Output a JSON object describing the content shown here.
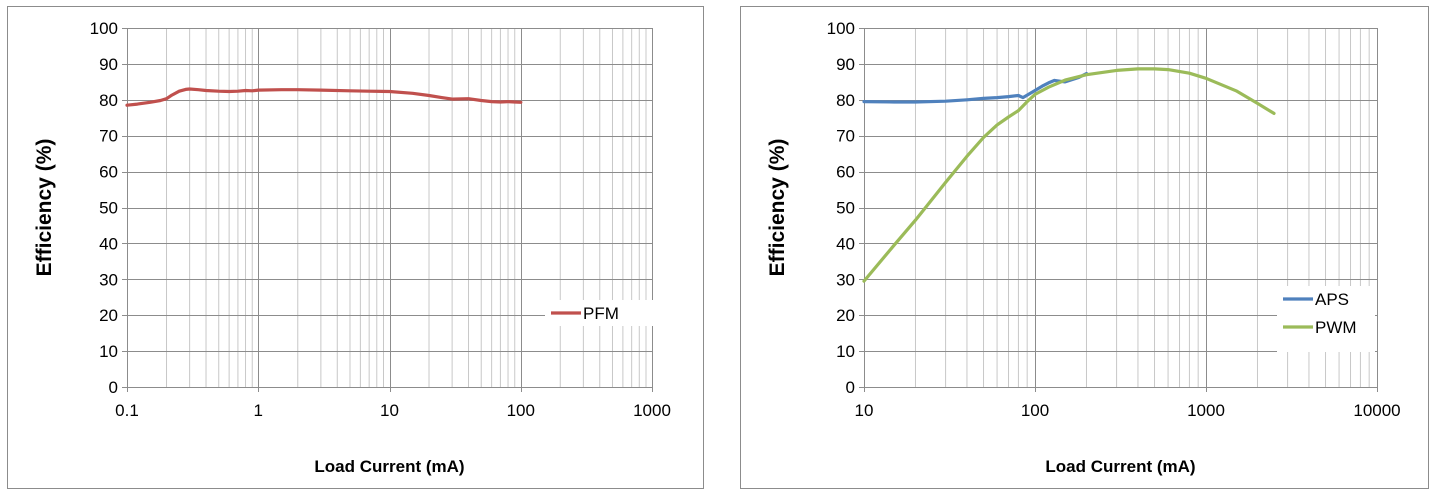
{
  "chart_data": [
    {
      "type": "line",
      "xscale": "log",
      "xlim": [
        0.1,
        1000
      ],
      "ylim": [
        0,
        100
      ],
      "xticks": [
        "0.1",
        "1",
        "10",
        "100",
        "1000"
      ],
      "yticks": [
        "0",
        "10",
        "20",
        "30",
        "40",
        "50",
        "60",
        "70",
        "80",
        "90",
        "100"
      ],
      "xlabel": "Load Current (mA)",
      "ylabel": "Efficiency (%)",
      "grid": true,
      "legend_position": "right",
      "series": [
        {
          "name": "PFM",
          "color": "#c0504d",
          "x": [
            0.1,
            0.12,
            0.15,
            0.18,
            0.2,
            0.22,
            0.25,
            0.28,
            0.3,
            0.35,
            0.4,
            0.5,
            0.6,
            0.7,
            0.8,
            0.9,
            1,
            1.5,
            2,
            3,
            5,
            7,
            10,
            15,
            20,
            25,
            30,
            40,
            50,
            60,
            70,
            80,
            90,
            100
          ],
          "y": [
            78.5,
            78.8,
            79.3,
            79.8,
            80.3,
            81.3,
            82.4,
            82.9,
            83.0,
            82.8,
            82.6,
            82.4,
            82.3,
            82.4,
            82.6,
            82.5,
            82.7,
            82.8,
            82.8,
            82.7,
            82.5,
            82.4,
            82.3,
            81.8,
            81.2,
            80.6,
            80.2,
            80.3,
            79.8,
            79.5,
            79.4,
            79.5,
            79.4,
            79.3
          ]
        }
      ]
    },
    {
      "type": "line",
      "xscale": "log",
      "xlim": [
        10,
        10000
      ],
      "ylim": [
        0,
        100
      ],
      "xticks": [
        "10",
        "100",
        "1000",
        "10000"
      ],
      "yticks": [
        "0",
        "10",
        "20",
        "30",
        "40",
        "50",
        "60",
        "70",
        "80",
        "90",
        "100"
      ],
      "xlabel": "Load Current (mA)",
      "ylabel": "Efficiency (%)",
      "grid": true,
      "legend_position": "right",
      "series": [
        {
          "name": "APS",
          "color": "#4f81bd",
          "x": [
            10,
            15,
            20,
            30,
            40,
            50,
            60,
            70,
            80,
            85,
            90,
            100,
            110,
            120,
            130,
            150,
            180,
            200
          ],
          "y": [
            79.5,
            79.4,
            79.4,
            79.6,
            80.0,
            80.4,
            80.6,
            80.9,
            81.2,
            80.6,
            81.3,
            82.6,
            83.8,
            84.7,
            85.4,
            85.0,
            86.2,
            87.3
          ]
        },
        {
          "name": "PWM",
          "color": "#9bbb59",
          "x": [
            10,
            15,
            20,
            30,
            40,
            50,
            60,
            70,
            80,
            90,
            100,
            120,
            150,
            200,
            300,
            400,
            500,
            600,
            800,
            1000,
            1500,
            2000,
            2500
          ],
          "y": [
            29.5,
            39.5,
            46.5,
            57.0,
            64.3,
            69.5,
            73.0,
            75.2,
            77.0,
            79.5,
            81.5,
            83.5,
            85.5,
            87.0,
            88.2,
            88.6,
            88.6,
            88.4,
            87.4,
            86.0,
            82.5,
            79.0,
            76.2
          ]
        }
      ]
    }
  ]
}
